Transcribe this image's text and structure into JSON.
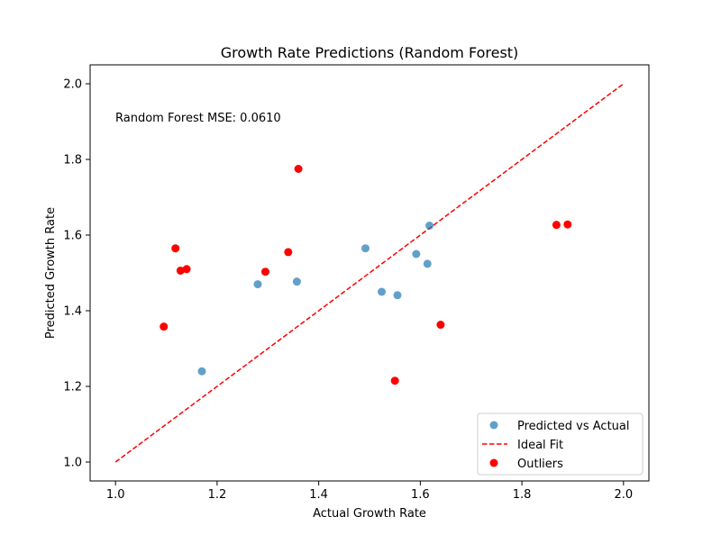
{
  "chart_data": {
    "type": "scatter",
    "title": "Growth Rate Predictions (Random Forest)",
    "xlabel": "Actual Growth Rate",
    "ylabel": "Predicted Growth Rate",
    "xlim": [
      0.95,
      2.05
    ],
    "ylim": [
      0.95,
      2.05
    ],
    "xticks": [
      1.0,
      1.2,
      1.4,
      1.6,
      1.8,
      2.0
    ],
    "yticks": [
      1.0,
      1.2,
      1.4,
      1.6,
      1.8,
      2.0
    ],
    "xtick_labels": [
      "1.0",
      "1.2",
      "1.4",
      "1.6",
      "1.8",
      "2.0"
    ],
    "ytick_labels": [
      "1.0",
      "1.2",
      "1.4",
      "1.6",
      "1.8",
      "2.0"
    ],
    "grid": false,
    "annotation": "Random Forest MSE: 0.0610",
    "legend_position": "lower-right",
    "series": [
      {
        "name": "Predicted vs Actual",
        "kind": "scatter",
        "color": "#1f77b4",
        "opacity": 0.7,
        "points": [
          {
            "x": 1.17,
            "y": 1.24
          },
          {
            "x": 1.28,
            "y": 1.47
          },
          {
            "x": 1.357,
            "y": 1.477
          },
          {
            "x": 1.492,
            "y": 1.565
          },
          {
            "x": 1.524,
            "y": 1.45
          },
          {
            "x": 1.555,
            "y": 1.441
          },
          {
            "x": 1.592,
            "y": 1.55
          },
          {
            "x": 1.614,
            "y": 1.524
          },
          {
            "x": 1.618,
            "y": 1.625
          }
        ]
      },
      {
        "name": "Ideal Fit",
        "kind": "line",
        "color": "#ff0000",
        "dashed": true,
        "points": [
          {
            "x": 1.0,
            "y": 1.0
          },
          {
            "x": 2.0,
            "y": 2.0
          }
        ]
      },
      {
        "name": "Outliers",
        "kind": "scatter",
        "color": "#ff0000",
        "opacity": 1.0,
        "points": [
          {
            "x": 1.095,
            "y": 1.358
          },
          {
            "x": 1.118,
            "y": 1.565
          },
          {
            "x": 1.128,
            "y": 1.506
          },
          {
            "x": 1.14,
            "y": 1.51
          },
          {
            "x": 1.295,
            "y": 1.503
          },
          {
            "x": 1.34,
            "y": 1.555
          },
          {
            "x": 1.36,
            "y": 1.775
          },
          {
            "x": 1.55,
            "y": 1.215
          },
          {
            "x": 1.64,
            "y": 1.363
          },
          {
            "x": 1.868,
            "y": 1.627
          },
          {
            "x": 1.89,
            "y": 1.628
          }
        ]
      }
    ]
  }
}
